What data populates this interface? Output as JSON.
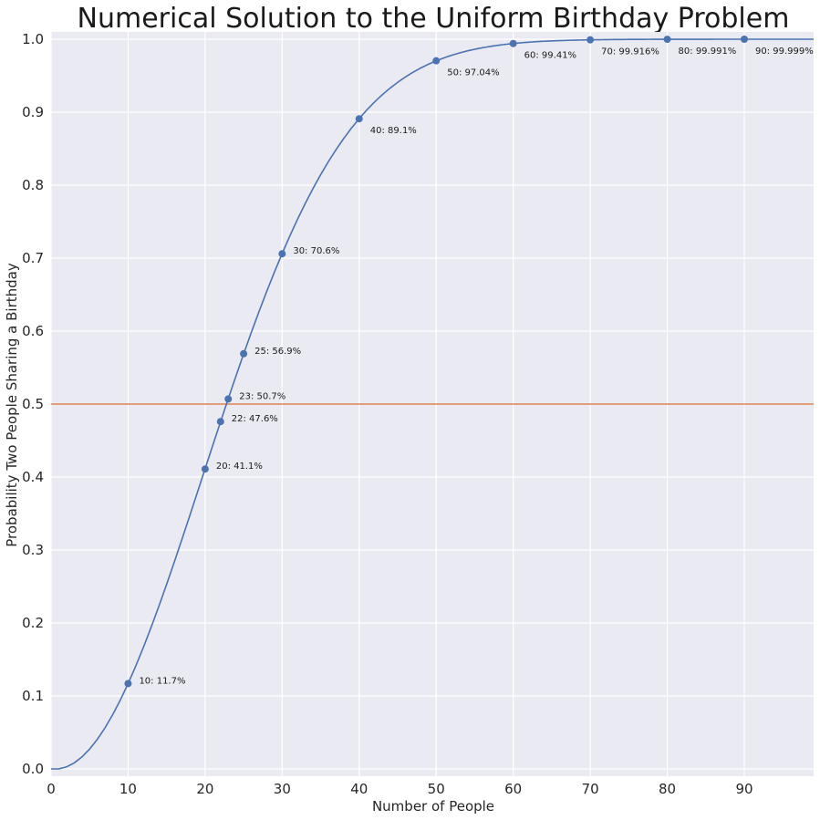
{
  "chart_data": {
    "type": "line",
    "title": "Numerical Solution to the Uniform Birthday Problem",
    "xlabel": "Number of People",
    "ylabel": "Probability Two People Sharing a Birthday",
    "xlim": [
      0,
      99
    ],
    "ylim": [
      -0.01,
      1.01
    ],
    "xticks": [
      0,
      10,
      20,
      30,
      40,
      50,
      60,
      70,
      80,
      90
    ],
    "xtick_labels": [
      "0",
      "10",
      "20",
      "30",
      "40",
      "50",
      "60",
      "70",
      "80",
      "90"
    ],
    "yticks": [
      0.0,
      0.1,
      0.2,
      0.3,
      0.4,
      0.5,
      0.6,
      0.7,
      0.8,
      0.9,
      1.0
    ],
    "ytick_labels": [
      "0.0",
      "0.1",
      "0.2",
      "0.3",
      "0.4",
      "0.5",
      "0.6",
      "0.7",
      "0.8",
      "0.9",
      "1.0"
    ],
    "grid": true,
    "curve": {
      "days": 365,
      "n_range": [
        0,
        99
      ],
      "color": "#4c72b0"
    },
    "reference_line": {
      "y": 0.5,
      "color": "#dd8452"
    },
    "points": [
      {
        "x": 10,
        "y": 0.117,
        "label": "10: 11.7%"
      },
      {
        "x": 20,
        "y": 0.411,
        "label": "20: 41.1%"
      },
      {
        "x": 22,
        "y": 0.476,
        "label": "22: 47.6%"
      },
      {
        "x": 23,
        "y": 0.507,
        "label": "23: 50.7%"
      },
      {
        "x": 25,
        "y": 0.569,
        "label": "25: 56.9%"
      },
      {
        "x": 30,
        "y": 0.706,
        "label": "30: 70.6%"
      },
      {
        "x": 40,
        "y": 0.891,
        "label": "40: 89.1%"
      },
      {
        "x": 50,
        "y": 0.9704,
        "label": "50: 97.04%"
      },
      {
        "x": 60,
        "y": 0.9941,
        "label": "60: 99.41%"
      },
      {
        "x": 70,
        "y": 0.99916,
        "label": "70: 99.916%"
      },
      {
        "x": 80,
        "y": 0.99991,
        "label": "80: 99.991%"
      },
      {
        "x": 90,
        "y": 0.99999,
        "label": "90: 99.999%"
      }
    ],
    "colors": {
      "plot_background": "#eaeaf2",
      "grid": "#ffffff",
      "series": "#4c72b0",
      "reference": "#dd8452"
    }
  }
}
